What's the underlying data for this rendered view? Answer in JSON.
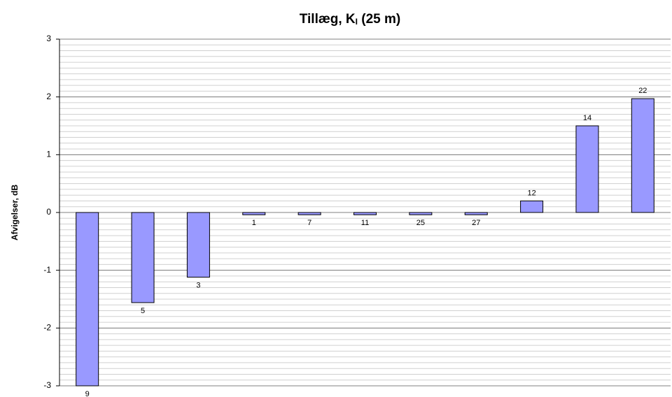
{
  "chart_data": {
    "type": "bar",
    "title": [
      "Tillæg, K",
      "I",
      " (25 m)"
    ],
    "y_label": "Afvigelser, dB",
    "categories": [
      "9",
      "5",
      "3",
      "1",
      "7",
      "11",
      "25",
      "27",
      "12",
      "14",
      "22"
    ],
    "values": [
      -3.0,
      -1.56,
      -1.12,
      -0.04,
      -0.04,
      -0.04,
      -0.04,
      -0.04,
      0.2,
      1.5,
      1.97
    ],
    "color": "#9999ff",
    "ylim": [
      -3,
      3
    ],
    "yticks": [
      -3,
      -2,
      -1,
      0,
      1,
      2,
      3
    ],
    "grid": true,
    "minor_grid": 0.1
  }
}
